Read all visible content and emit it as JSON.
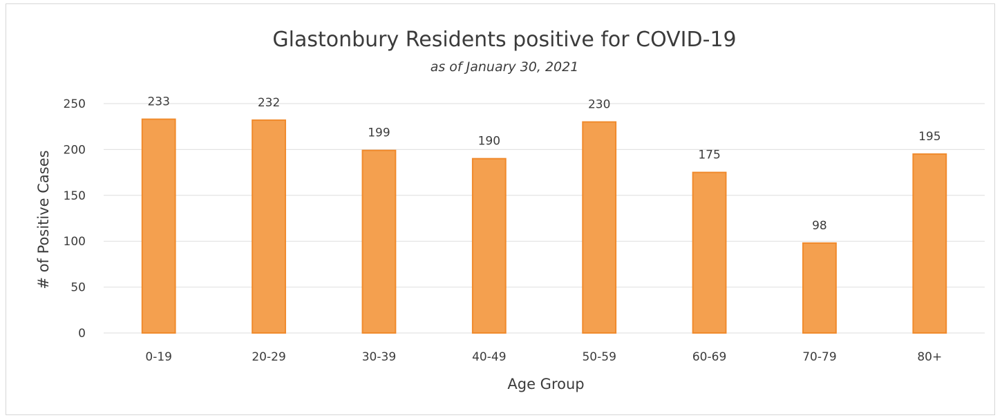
{
  "chart_data": {
    "type": "bar",
    "title": "Glastonbury Residents positive for COVID-19",
    "subtitle": "as of January 30, 2021",
    "xlabel": "Age Group",
    "ylabel": "# of Positive Cases",
    "categories": [
      "0-19",
      "20-29",
      "30-39",
      "40-49",
      "50-59",
      "60-69",
      "70-79",
      "80+"
    ],
    "values": [
      233,
      232,
      199,
      190,
      230,
      175,
      98,
      195
    ],
    "data_labels": [
      "233",
      "232",
      "199",
      "190",
      "230",
      "175",
      "98",
      "195"
    ],
    "ylim": [
      0,
      250
    ],
    "yticks": [
      0,
      50,
      100,
      150,
      200,
      250
    ],
    "grid": true,
    "legend": "none",
    "bar_color": "#f4a04f",
    "bar_edge_color": "#f08a2c",
    "grid_color": "#dedede"
  }
}
